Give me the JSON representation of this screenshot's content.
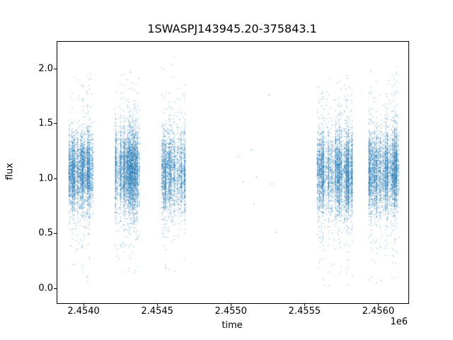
{
  "figure": {
    "background": "#ffffff",
    "axis_color": "#000000",
    "text_color": "#000000"
  },
  "chart_data": {
    "type": "scatter",
    "title": "1SWASPJ143945.20-375843.1",
    "xlabel": "time",
    "ylabel": "flux",
    "x_offset_text": "1e6",
    "x_scale_factor": 1000000,
    "xlim": [
      2453817,
      2456200
    ],
    "ylim": [
      -0.13,
      2.25
    ],
    "x_ticks": [
      2454000,
      2454500,
      2455000,
      2455500,
      2456000
    ],
    "x_tick_labels": [
      "2.4540",
      "2.4545",
      "2.4550",
      "2.4555",
      "2.4560"
    ],
    "y_ticks": [
      0.0,
      0.5,
      1.0,
      1.5,
      2.0
    ],
    "y_tick_labels": [
      "0.0",
      "0.5",
      "1.0",
      "1.5",
      "2.0"
    ],
    "grid": false,
    "legend": null,
    "marker_color": "#1f77b4",
    "marker_alpha": 0.5,
    "marker_size_px": 1.2,
    "clusters": [
      {
        "t_start": 2453890,
        "t_end": 2454060,
        "n_points": 3200,
        "n_nights": 15,
        "flux_mean": 1.07,
        "flux_sigma": 0.17,
        "tail_frac": 0.09,
        "tail_sigma": 0.42,
        "flux_min": 0.0,
        "flux_max": 1.97
      },
      {
        "t_start": 2454205,
        "t_end": 2454375,
        "n_points": 3800,
        "n_nights": 15,
        "flux_mean": 1.08,
        "flux_sigma": 0.18,
        "tail_frac": 0.1,
        "tail_sigma": 0.45,
        "flux_min": 0.12,
        "flux_max": 2.02
      },
      {
        "t_start": 2454520,
        "t_end": 2454685,
        "n_points": 2300,
        "n_nights": 14,
        "flux_mean": 1.07,
        "flux_sigma": 0.19,
        "tail_frac": 0.1,
        "tail_sigma": 0.48,
        "flux_min": 0.13,
        "flux_max": 2.16
      },
      {
        "t_start": 2455575,
        "t_end": 2455820,
        "n_points": 4200,
        "n_nights": 20,
        "flux_mean": 1.06,
        "flux_sigma": 0.18,
        "tail_frac": 0.12,
        "tail_sigma": 0.48,
        "flux_min": 0.03,
        "flux_max": 1.97
      },
      {
        "t_start": 2455925,
        "t_end": 2456135,
        "n_points": 3800,
        "n_nights": 17,
        "flux_mean": 1.07,
        "flux_sigma": 0.18,
        "tail_frac": 0.11,
        "tail_sigma": 0.46,
        "flux_min": 0.02,
        "flux_max": 2.07
      }
    ],
    "sparse_points": [
      [
        2455040,
        1.21
      ],
      [
        2455075,
        0.98
      ],
      [
        2455130,
        1.27
      ],
      [
        2455150,
        0.78
      ],
      [
        2455165,
        1.02
      ],
      [
        2455250,
        1.77
      ],
      [
        2455270,
        0.96
      ],
      [
        2455300,
        0.52
      ]
    ]
  }
}
